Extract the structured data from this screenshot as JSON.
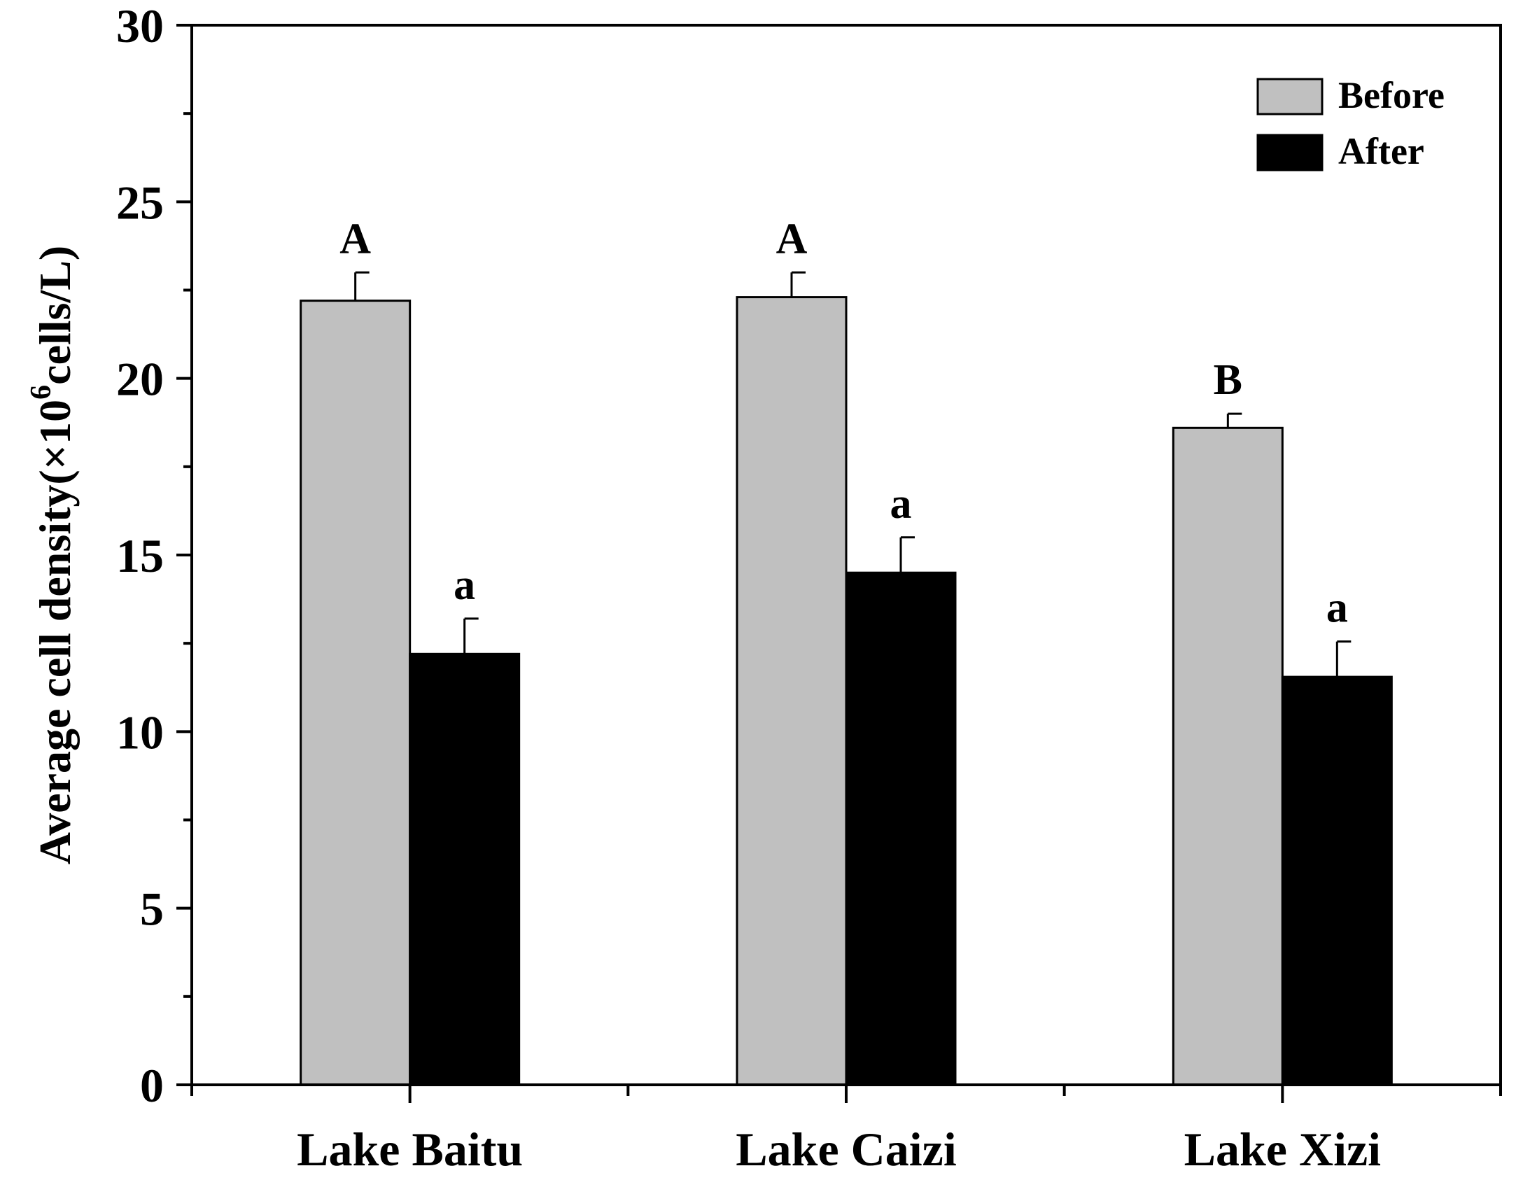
{
  "chart_data": {
    "type": "bar",
    "categories": [
      "Lake Baitu",
      "Lake Caizi",
      "Lake Xizi"
    ],
    "series": [
      {
        "name": "Before",
        "color": "#c0c0c0",
        "values": [
          22.2,
          22.3,
          18.6
        ],
        "errors": [
          0.8,
          0.7,
          0.4
        ],
        "labels": [
          "A",
          "A",
          "B"
        ]
      },
      {
        "name": "After",
        "color": "#000000",
        "values": [
          12.2,
          14.5,
          11.55
        ],
        "errors": [
          1.0,
          1.0,
          1.0
        ],
        "labels": [
          "a",
          "a",
          "a"
        ]
      }
    ],
    "ylabel": "Average cell density(×10",
    "ylabel_sup": "6",
    "ylabel_end": "cells/L)",
    "ylim": [
      0,
      30
    ],
    "yticks": [
      "0",
      "5",
      "10",
      "15",
      "20",
      "25",
      "30"
    ],
    "legend": {
      "placement": "top-right",
      "items": [
        "Before",
        "After"
      ]
    },
    "grid": false
  }
}
